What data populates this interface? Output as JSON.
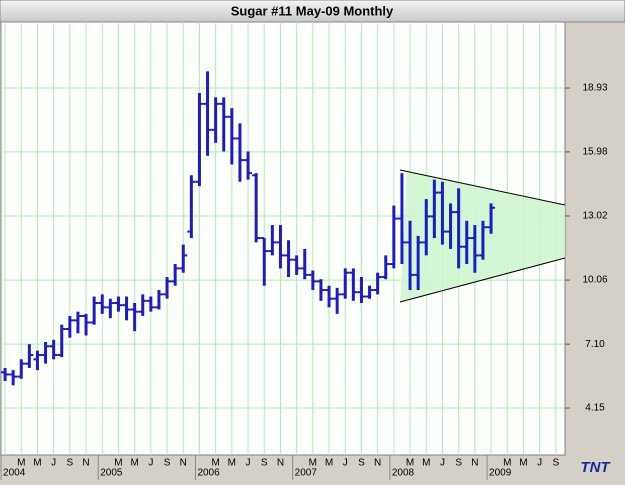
{
  "chart_data": {
    "type": "ohlc",
    "title": "Sugar #11 May-09  Monthly",
    "logo": "TNT",
    "color": "#1c1cc4",
    "grid": true,
    "categories": [
      "2004",
      null,
      "M",
      null,
      "M",
      null,
      "J",
      null,
      "S",
      null,
      "N",
      null,
      "2005",
      null,
      "M",
      null,
      "M",
      null,
      "J",
      null,
      "S",
      null,
      "N",
      null,
      "2006",
      null,
      "M",
      null,
      "M",
      null,
      "J",
      null,
      "S",
      null,
      "N",
      null,
      "2007",
      null,
      "M",
      null,
      "M",
      null,
      "J",
      null,
      "S",
      null,
      "N",
      null,
      "2008",
      null,
      "M",
      null,
      "M",
      null,
      "J",
      null,
      "S",
      null,
      "N",
      null,
      "2009",
      null,
      "M",
      null,
      "M",
      null,
      "J",
      null,
      "S"
    ],
    "open": [
      5.8,
      5.7,
      5.6,
      6.2,
      6.4,
      6.6,
      7.0,
      6.6,
      7.8,
      8.2,
      8.4,
      8.1,
      9.0,
      8.8,
      9.0,
      8.9,
      8.7,
      8.6,
      9.1,
      8.8,
      9.4,
      10.0,
      10.6,
      12.3,
      14.6,
      18.2,
      17.0,
      18.2,
      17.6,
      16.6,
      15.6,
      14.9,
      12.0,
      11.4,
      11.8,
      11.2,
      11.0,
      10.6,
      10.3,
      10.0,
      9.6,
      9.2,
      9.4,
      10.4,
      9.5,
      9.3,
      9.6,
      10.2,
      10.8,
      12.9,
      11.8,
      10.3,
      11.8,
      13.0,
      14.1,
      12.3,
      13.2,
      11.6,
      12.0,
      11.2,
      12.5,
      null,
      null,
      null,
      null,
      null,
      null,
      null,
      null
    ],
    "high": [
      6.0,
      5.9,
      6.4,
      7.1,
      6.8,
      7.2,
      7.3,
      8.0,
      8.4,
      8.6,
      8.5,
      9.3,
      9.4,
      9.2,
      9.3,
      9.3,
      9.0,
      9.4,
      9.3,
      9.6,
      10.2,
      10.8,
      11.7,
      14.9,
      18.7,
      19.7,
      18.5,
      18.5,
      18.0,
      17.3,
      16.0,
      15.0,
      12.0,
      12.6,
      12.6,
      11.9,
      11.2,
      11.5,
      10.5,
      10.1,
      9.8,
      9.7,
      10.6,
      10.6,
      10.2,
      9.8,
      10.4,
      11.2,
      13.5,
      15.0,
      12.8,
      12.1,
      13.8,
      14.7,
      14.6,
      13.6,
      14.3,
      12.8,
      12.6,
      12.8,
      13.6,
      null,
      null,
      null,
      null,
      null,
      null,
      null,
      null
    ],
    "low": [
      5.4,
      5.2,
      5.5,
      6.0,
      5.9,
      6.2,
      6.4,
      6.5,
      7.4,
      7.6,
      7.5,
      8.0,
      8.5,
      8.3,
      8.6,
      8.2,
      7.7,
      8.4,
      8.6,
      8.7,
      9.2,
      9.8,
      10.4,
      12.0,
      14.4,
      15.8,
      16.4,
      16.0,
      15.4,
      14.6,
      14.7,
      11.8,
      9.8,
      11.2,
      10.6,
      10.2,
      10.3,
      10.1,
      9.6,
      9.1,
      8.8,
      8.5,
      9.2,
      9.1,
      9.0,
      9.2,
      9.4,
      10.1,
      10.6,
      10.8,
      9.6,
      9.6,
      11.2,
      12.0,
      11.7,
      11.5,
      10.6,
      10.8,
      10.4,
      11.0,
      12.2,
      null,
      null,
      null,
      null,
      null,
      null,
      null,
      null
    ],
    "close": [
      5.7,
      5.6,
      6.2,
      6.6,
      6.6,
      7.0,
      6.6,
      7.8,
      8.2,
      8.4,
      8.1,
      9.0,
      8.8,
      9.0,
      8.9,
      8.7,
      8.6,
      9.1,
      8.8,
      9.4,
      10.0,
      10.6,
      11.2,
      14.6,
      18.2,
      17.0,
      18.2,
      17.6,
      16.6,
      15.6,
      15.0,
      12.0,
      11.4,
      11.8,
      11.2,
      11.0,
      10.6,
      10.3,
      10.0,
      9.6,
      9.2,
      9.4,
      10.4,
      9.5,
      9.3,
      9.6,
      10.2,
      10.8,
      12.9,
      11.8,
      10.3,
      11.8,
      13.0,
      14.1,
      12.3,
      13.2,
      11.6,
      12.0,
      11.2,
      12.5,
      13.4,
      null,
      null,
      null,
      null,
      null,
      null,
      null,
      null
    ],
    "ylim": [
      1.98,
      21.98
    ],
    "yticks": [
      4.15,
      {
        "value": 7.1,
        "label": "7.10"
      },
      10.06,
      13.02,
      15.98,
      18.93
    ]
  }
}
